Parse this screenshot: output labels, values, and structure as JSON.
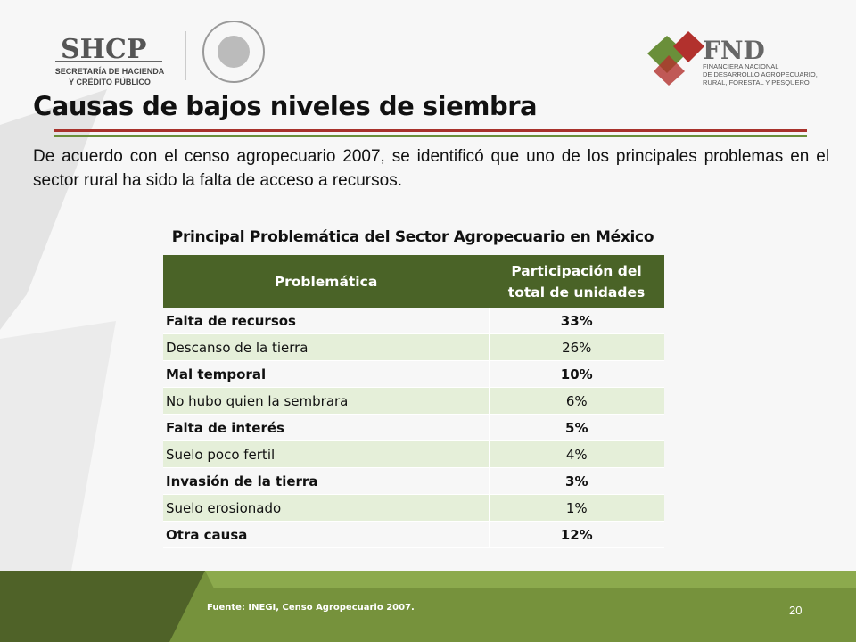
{
  "header": {
    "left_logo": "SHCP",
    "left_logo_lines": [
      "SECRETARÍA DE HACIENDA",
      "Y CRÉDITO PÚBLICO"
    ],
    "right_logo": "FND",
    "right_logo_lines": [
      "FINANCIERA NACIONAL",
      "DE DESARROLLO AGROPECUARIO,",
      "RURAL, FORESTAL Y PESQUERO"
    ]
  },
  "title": "Causas de bajos niveles de siembra",
  "paragraph": "De acuerdo con el censo agropecuario 2007, se identificó que uno de los principales problemas en el sector rural ha sido la falta de acceso a recursos.",
  "table": {
    "title": "Principal Problemática del Sector Agropecuario en México",
    "columns": [
      "Problemática",
      "Participación del total de unidades"
    ],
    "rows": [
      [
        "Falta de recursos",
        "33%"
      ],
      [
        "Descanso de la tierra",
        "26%"
      ],
      [
        "Mal temporal",
        "10%"
      ],
      [
        "No hubo quien la sembrara",
        "6%"
      ],
      [
        "Falta de interés",
        "5%"
      ],
      [
        "Suelo poco fertil",
        "4%"
      ],
      [
        "Invasión de la tierra",
        "3%"
      ],
      [
        "Suelo erosionado",
        "1%"
      ],
      [
        "Otra causa",
        "12%"
      ]
    ]
  },
  "source": "Fuente: INEGI, Censo Agropecuario 2007.",
  "page_number": "20"
}
